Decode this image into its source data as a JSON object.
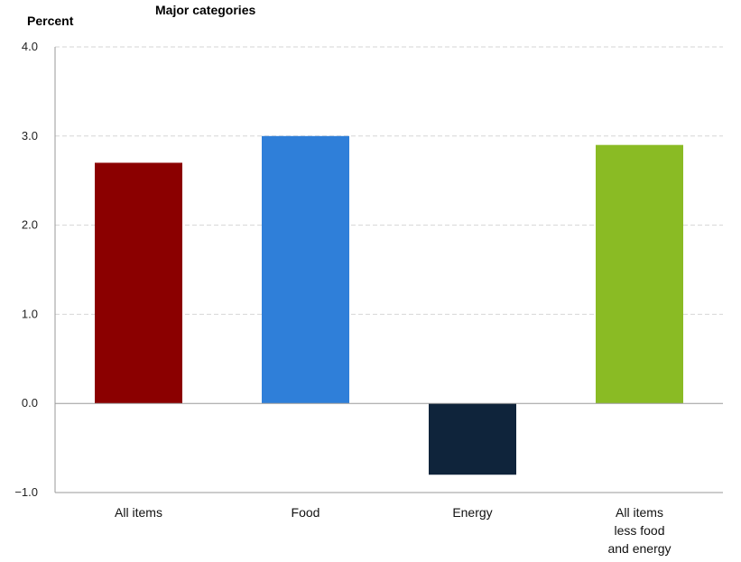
{
  "chart_data": {
    "type": "bar",
    "title": "Major categories",
    "ylabel": "Percent",
    "xlabel": "",
    "categories": [
      [
        "All items"
      ],
      [
        "Food"
      ],
      [
        "Energy"
      ],
      [
        "All items",
        "less food",
        "and energy"
      ]
    ],
    "values": [
      2.7,
      3.0,
      -0.8,
      2.9
    ],
    "colors": [
      "#8b0000",
      "#2f7fd9",
      "#0f243b",
      "#8abb24"
    ],
    "ylim": [
      -1.0,
      4.0
    ],
    "yticks": [
      "4.0",
      "3.0",
      "2.0",
      "1.0",
      "0.0",
      "−1.0"
    ],
    "ytick_values": [
      4.0,
      3.0,
      2.0,
      1.0,
      0.0,
      -1.0
    ],
    "grid": true,
    "grid_style": "dashed",
    "legend": "none"
  }
}
